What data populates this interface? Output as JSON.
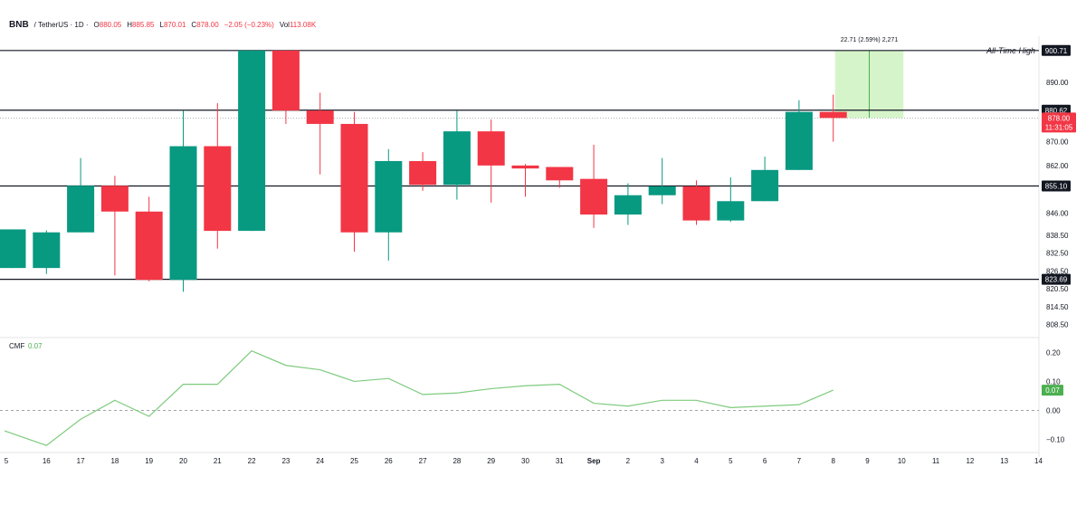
{
  "header": {
    "symbol": "BNB",
    "pair": "/ TetherUS · 1D ·",
    "o_label": "O",
    "open": "880.05",
    "h_label": "H",
    "high": "885.85",
    "l_label": "L",
    "low": "870.01",
    "c_label": "C",
    "close": "878.00",
    "change": "−2.05 (−0.23%)",
    "vol_label": "Vol",
    "volume": "113.08K"
  },
  "chart_data": [
    {
      "type": "candlestick",
      "price_ticks": [
        "890.00",
        "870.00",
        "862.00",
        "846.00",
        "838.50",
        "832.50",
        "826.50",
        "820.50",
        "814.50",
        "808.50"
      ],
      "ylim": [
        805,
        904
      ],
      "x_labels": [
        "5",
        "16",
        "17",
        "18",
        "19",
        "20",
        "21",
        "22",
        "23",
        "24",
        "25",
        "26",
        "27",
        "28",
        "29",
        "30",
        "31",
        "Sep",
        "2",
        "3",
        "4",
        "5",
        "6",
        "7",
        "8",
        "9",
        "10",
        "11",
        "12",
        "13",
        "14"
      ],
      "candles": [
        {
          "o": 827.5,
          "h": 840.5,
          "l": 827.5,
          "c": 840.5
        },
        {
          "o": 827.5,
          "h": 840.2,
          "l": 825.5,
          "c": 839.5
        },
        {
          "o": 839.5,
          "h": 864.5,
          "l": 839.5,
          "c": 855.2
        },
        {
          "o": 855.2,
          "h": 858.5,
          "l": 825.0,
          "c": 846.5
        },
        {
          "o": 846.5,
          "h": 851.5,
          "l": 823.0,
          "c": 823.5
        },
        {
          "o": 823.5,
          "h": 880.5,
          "l": 819.5,
          "c": 868.5
        },
        {
          "o": 868.5,
          "h": 883.0,
          "l": 834.0,
          "c": 840.0
        },
        {
          "o": 840.0,
          "h": 900.71,
          "l": 840.0,
          "c": 900.71
        },
        {
          "o": 900.71,
          "h": 900.71,
          "l": 876.0,
          "c": 880.5
        },
        {
          "o": 880.5,
          "h": 886.5,
          "l": 859.0,
          "c": 876.0
        },
        {
          "o": 876.0,
          "h": 880.0,
          "l": 833.0,
          "c": 839.5
        },
        {
          "o": 839.5,
          "h": 867.5,
          "l": 830.0,
          "c": 863.5
        },
        {
          "o": 863.5,
          "h": 866.5,
          "l": 853.5,
          "c": 855.5
        },
        {
          "o": 855.5,
          "h": 880.5,
          "l": 850.5,
          "c": 873.5
        },
        {
          "o": 873.5,
          "h": 877.5,
          "l": 849.5,
          "c": 862.0
        },
        {
          "o": 862.0,
          "h": 862.5,
          "l": 851.5,
          "c": 861.0
        },
        {
          "o": 861.5,
          "h": 861.5,
          "l": 854.5,
          "c": 857.0
        },
        {
          "o": 857.5,
          "h": 869.0,
          "l": 841.0,
          "c": 845.5
        },
        {
          "o": 845.5,
          "h": 856.0,
          "l": 842.0,
          "c": 852.0
        },
        {
          "o": 852.0,
          "h": 864.5,
          "l": 849.0,
          "c": 855.0
        },
        {
          "o": 855.0,
          "h": 857.0,
          "l": 842.0,
          "c": 843.5
        },
        {
          "o": 843.5,
          "h": 858.0,
          "l": 843.0,
          "c": 850.0
        },
        {
          "o": 850.0,
          "h": 865.0,
          "l": 850.0,
          "c": 860.5
        },
        {
          "o": 860.5,
          "h": 884.0,
          "l": 860.5,
          "c": 880.05
        },
        {
          "o": 880.05,
          "h": 885.85,
          "l": 870.01,
          "c": 878.0
        }
      ],
      "levels": [
        {
          "value": 900.71,
          "label": "900.71",
          "annotation": "All-Time High"
        },
        {
          "value": 880.62,
          "label": "880.62"
        },
        {
          "value": 855.1,
          "label": "855.10"
        },
        {
          "value": 823.69,
          "label": "823.69"
        }
      ],
      "current_price": {
        "value": 878.0,
        "label": "878.00",
        "countdown": "11:31:05"
      },
      "measure_box": {
        "from_index": 24,
        "to_index": 26,
        "low": 878.0,
        "high": 900.71,
        "text": "22.71 (2.59%) 2,271"
      },
      "colors": {
        "up": "#089981",
        "down": "#f23645"
      }
    },
    {
      "type": "line",
      "title": "CMF",
      "current": "0.07",
      "y_ticks": [
        "0.20",
        "0.10",
        "0.00",
        "−0.10"
      ],
      "ylim": [
        -0.135,
        0.235
      ],
      "values": [
        -0.07,
        -0.12,
        -0.03,
        0.035,
        -0.02,
        0.09,
        0.09,
        0.205,
        0.155,
        0.14,
        0.1,
        0.11,
        0.055,
        0.06,
        0.075,
        0.085,
        0.09,
        0.025,
        0.015,
        0.035,
        0.035,
        0.01,
        0.015,
        0.02,
        0.07
      ],
      "color": "#7ecb7e"
    }
  ]
}
